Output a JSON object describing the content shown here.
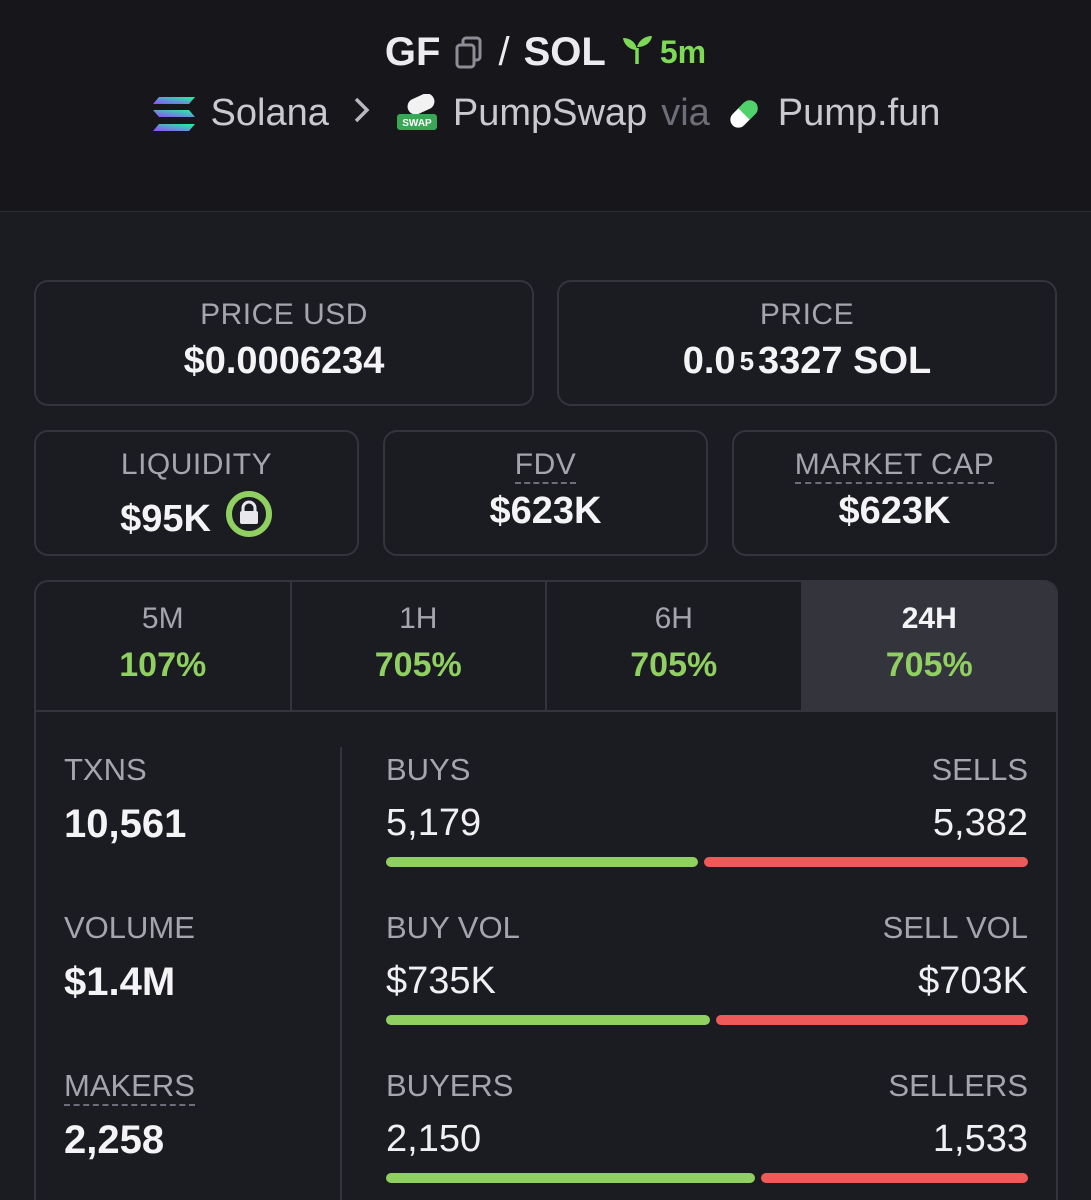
{
  "pair": {
    "base": "GF",
    "separator": "/",
    "quote": "SOL",
    "age": "5m"
  },
  "breadcrumb": {
    "chain": "Solana",
    "dex": "PumpSwap",
    "via": "via",
    "launchpad": "Pump.fun"
  },
  "price_usd": {
    "label": "PRICE USD",
    "value": "$0.0006234"
  },
  "price_native": {
    "label": "PRICE",
    "prefix": "0.0",
    "zeros": "5",
    "suffix": "3327 SOL"
  },
  "liquidity": {
    "label": "LIQUIDITY",
    "value": "$95K"
  },
  "fdv": {
    "label": "FDV",
    "value": "$623K"
  },
  "market_cap": {
    "label": "MARKET CAP",
    "value": "$623K"
  },
  "tabs": [
    {
      "label": "5M",
      "value": "107%"
    },
    {
      "label": "1H",
      "value": "705%"
    },
    {
      "label": "6H",
      "value": "705%"
    },
    {
      "label": "24H",
      "value": "705%"
    }
  ],
  "metrics": [
    {
      "label": "TXNS",
      "value": "10,561"
    },
    {
      "label": "VOLUME",
      "value": "$1.4M"
    },
    {
      "label": "MAKERS",
      "value": "2,258"
    }
  ],
  "splits": [
    {
      "left_label": "BUYS",
      "left_value": "5,179",
      "right_label": "SELLS",
      "right_value": "5,382",
      "buy_fraction": 0.49
    },
    {
      "left_label": "BUY VOL",
      "left_value": "$735K",
      "right_label": "SELL VOL",
      "right_value": "$703K",
      "buy_fraction": 0.51
    },
    {
      "left_label": "BUYERS",
      "left_value": "2,150",
      "right_label": "SELLERS",
      "right_value": "1,533",
      "buy_fraction": 0.58
    }
  ],
  "colors": {
    "positive": "#8fd060",
    "buy": "#8fd060",
    "sell": "#ee5a5a",
    "age": "#7ed957"
  },
  "icons": [
    "copy-icon",
    "seedling-icon",
    "solana-icon",
    "chevron-right-icon",
    "pumpswap-icon",
    "pumpfun-pill-icon",
    "lock-icon"
  ]
}
